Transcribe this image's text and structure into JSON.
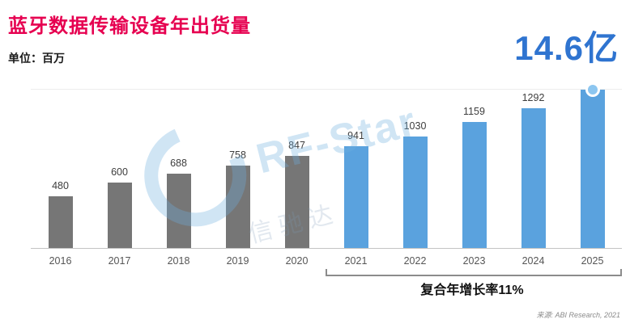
{
  "header": {
    "title": "蓝牙数据传输设备年出货量",
    "unit_label": "单位：百万",
    "highlight_value": "14.6亿"
  },
  "chart_data": {
    "type": "bar",
    "title": "蓝牙数据传输设备年出货量",
    "unit": "百万",
    "categories": [
      "2016",
      "2017",
      "2018",
      "2019",
      "2020",
      "2021",
      "2022",
      "2023",
      "2024",
      "2025"
    ],
    "values": [
      480,
      600,
      688,
      758,
      847,
      941,
      1030,
      1159,
      1292,
      1460
    ],
    "bar_labels": [
      "480",
      "600",
      "688",
      "758",
      "847",
      "941",
      "1030",
      "1159",
      "1292",
      ""
    ],
    "forecast_start_index": 5,
    "ylim": [
      0,
      1460
    ],
    "bar_colors": {
      "historical": "#767676",
      "forecast": "#5aa2de"
    },
    "marker_on_last_bar": true,
    "annotation": "复合年增长率11%",
    "legend_position": "none",
    "grid": "baseline-and-top-line"
  },
  "footer": {
    "source": "来源: ABI Research, 2021"
  },
  "watermark": {
    "text": "RF-Star",
    "subtext": "信驰达"
  },
  "colors": {
    "title": "#e60050",
    "highlight_number": "#2f74d0",
    "historical_bar": "#767676",
    "forecast_bar": "#5aa2de",
    "marker": "#8cc6f0",
    "axis_line": "#c4c4c4",
    "bracket": "#8c8c8c"
  }
}
